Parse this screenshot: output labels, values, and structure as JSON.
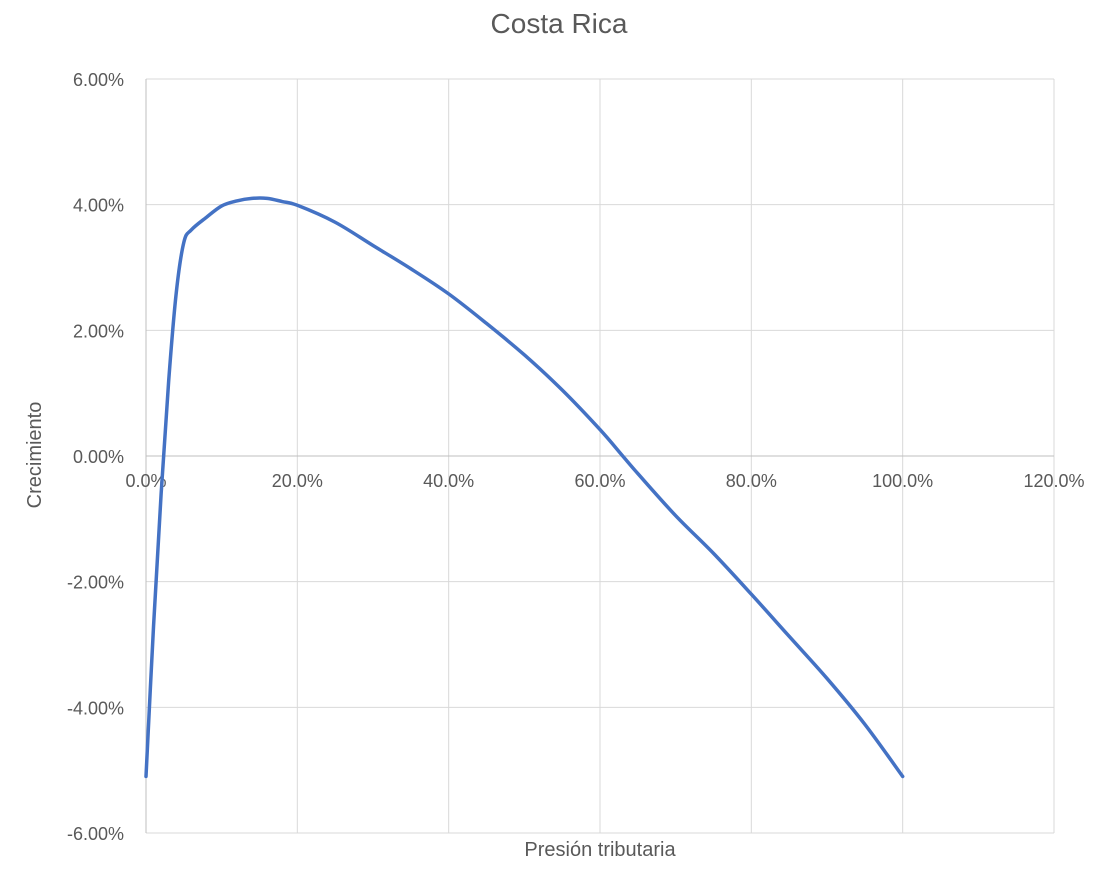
{
  "chart_data": {
    "type": "line",
    "title": "Costa Rica",
    "xlabel": "Presión tributaria",
    "ylabel": "Crecimiento",
    "xlim": [
      0,
      1.2
    ],
    "ylim": [
      -0.06,
      0.06
    ],
    "x_ticks": [
      0,
      0.2,
      0.4,
      0.6,
      0.8,
      1.0,
      1.2
    ],
    "x_tick_labels": [
      "0.0%",
      "20.0%",
      "40.0%",
      "60.0%",
      "80.0%",
      "100.0%",
      "120.0%"
    ],
    "y_ticks": [
      0.06,
      0.04,
      0.02,
      0,
      -0.02,
      -0.04,
      -0.06
    ],
    "y_tick_labels": [
      "6.00%",
      "4.00%",
      "2.00%",
      "0.00%",
      "-2.00%",
      "-4.00%",
      "-6.00%"
    ],
    "grid": true,
    "legend": "none",
    "series": [
      {
        "color": "#4472C4",
        "x": [
          0.0,
          0.01,
          0.02,
          0.03,
          0.04,
          0.05,
          0.06,
          0.08,
          0.1,
          0.12,
          0.14,
          0.16,
          0.18,
          0.2,
          0.25,
          0.3,
          0.35,
          0.4,
          0.45,
          0.5,
          0.55,
          0.6,
          0.63,
          0.65,
          0.7,
          0.75,
          0.8,
          0.85,
          0.9,
          0.95,
          1.0
        ],
        "y": [
          -0.051,
          -0.027,
          -0.006,
          0.012,
          0.026,
          0.034,
          0.036,
          0.038,
          0.0398,
          0.0406,
          0.041,
          0.041,
          0.0405,
          0.0399,
          0.0372,
          0.0335,
          0.0298,
          0.0258,
          0.0211,
          0.0161,
          0.0105,
          0.0042,
          0.0,
          -0.0028,
          -0.0095,
          -0.0155,
          -0.022,
          -0.0287,
          -0.0354,
          -0.0427,
          -0.051
        ]
      }
    ]
  }
}
